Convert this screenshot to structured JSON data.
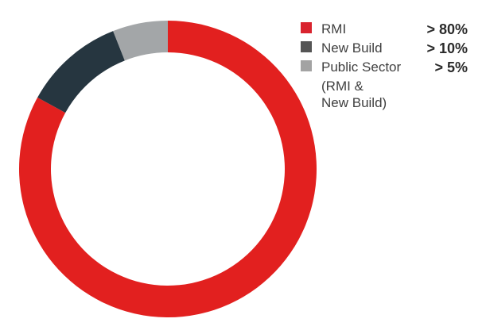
{
  "chart_data": {
    "type": "pie",
    "donut": true,
    "start_angle_deg": 0,
    "direction": "clockwise",
    "legend_position": "top-right",
    "categories": [
      "RMI",
      "New Build",
      "Public Sector"
    ],
    "values": [
      83,
      11,
      6
    ],
    "legend": [
      {
        "label": "RMI",
        "value_label": "> 80%",
        "color": "#e2201f"
      },
      {
        "label": "New Build",
        "value_label": "> 10%",
        "color": "#263640"
      },
      {
        "label": "Public Sector",
        "value_label": "> 5%",
        "color": "#a3a6a8"
      }
    ],
    "legend_note": [
      "(RMI &",
      "New Build)"
    ]
  },
  "legend_swatch_colors": [
    "#d9232e",
    "#555555",
    "#a3a3a3"
  ]
}
